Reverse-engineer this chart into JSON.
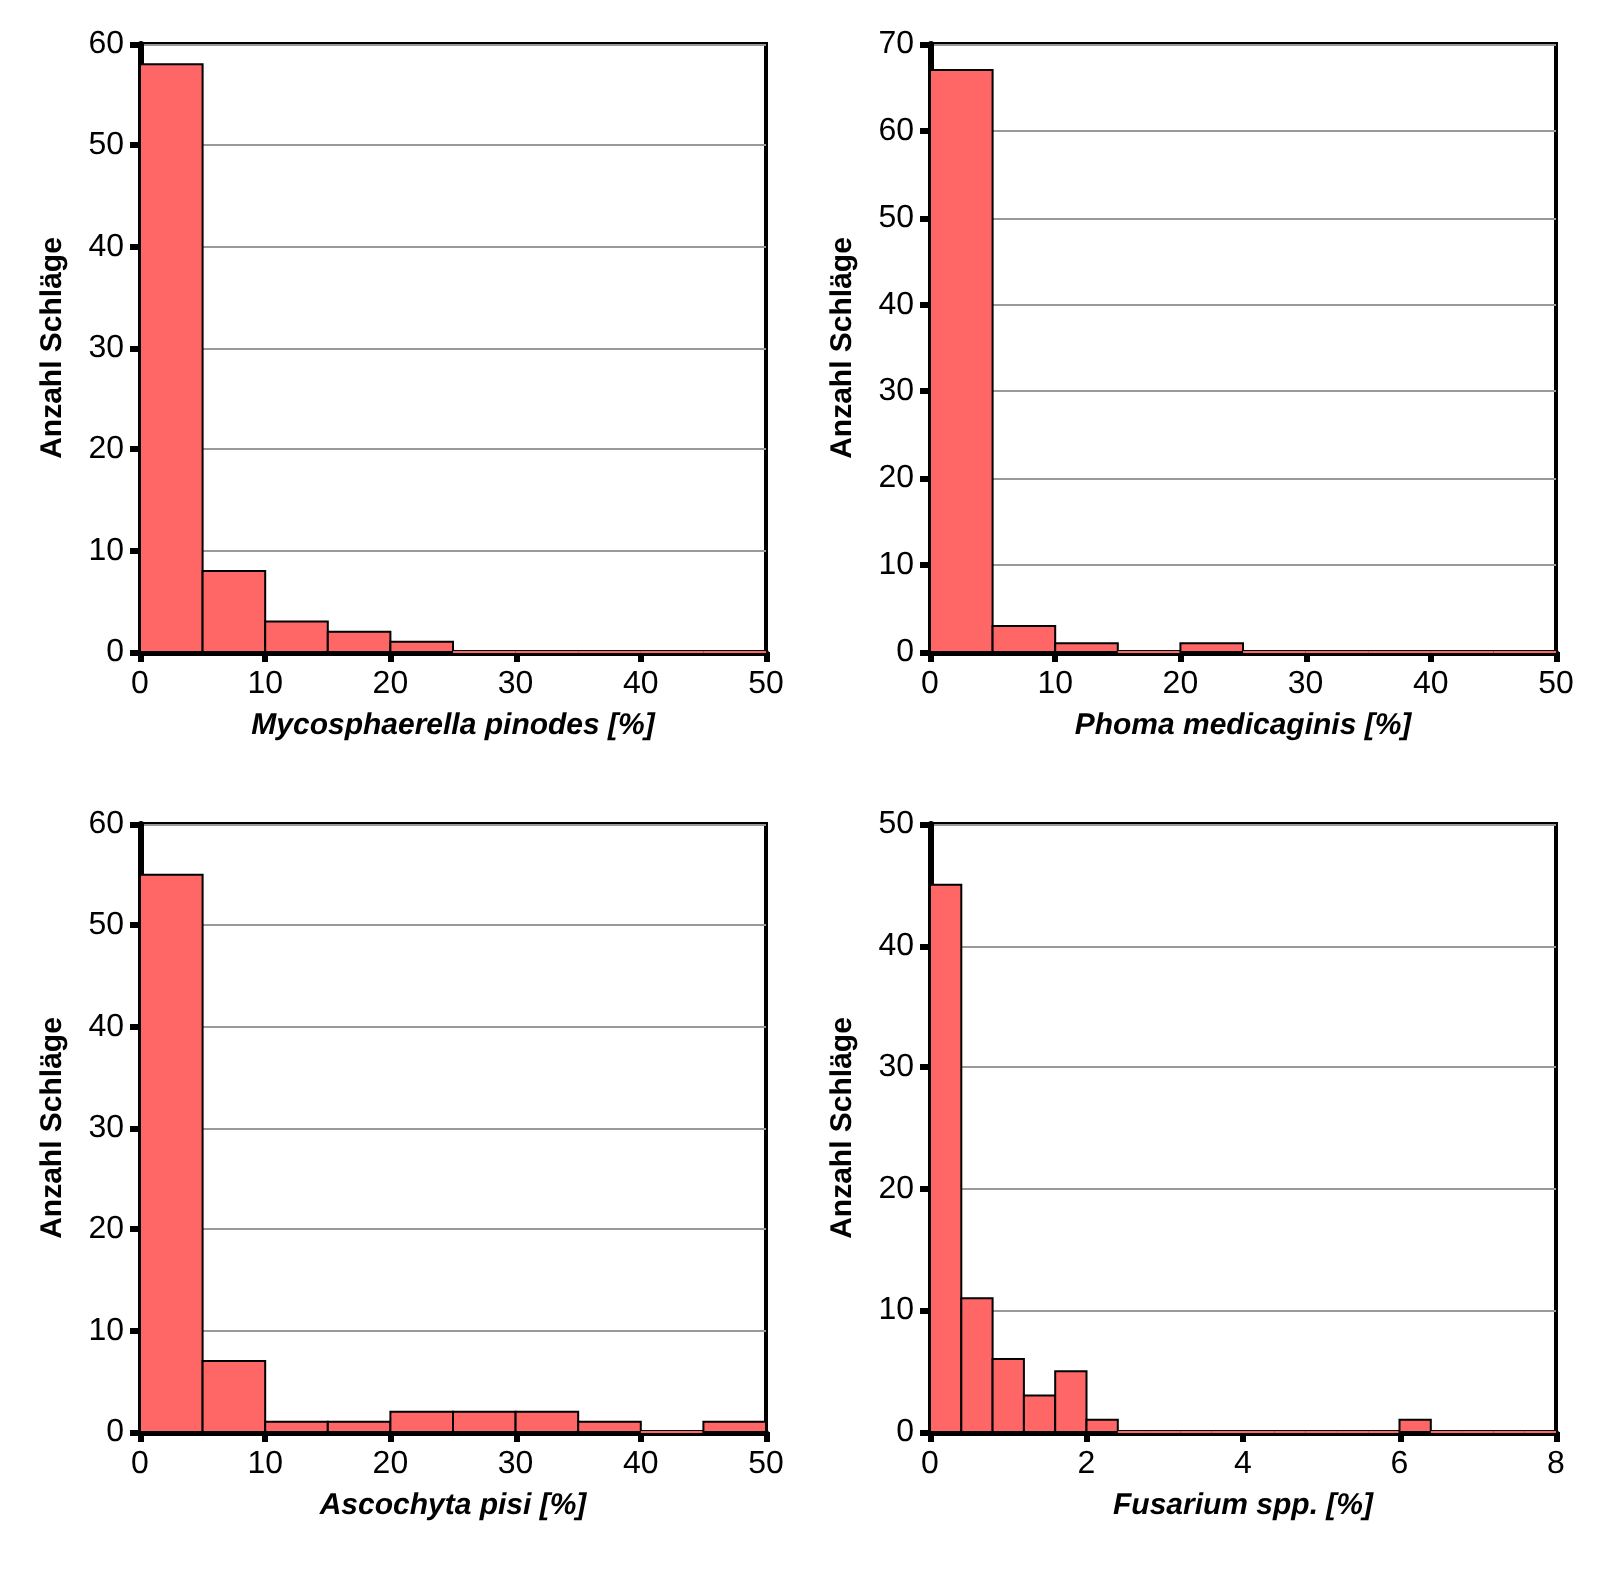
{
  "chart_data": [
    {
      "type": "histogram",
      "xlabel": "Mycosphaerella pinodes [%]",
      "ylabel": "Anzahl Schläge",
      "bins": [
        0,
        5,
        10,
        15,
        20,
        25,
        30,
        35,
        40,
        45,
        50
      ],
      "values": [
        58,
        8,
        3,
        2,
        1,
        0,
        0,
        0,
        0,
        0
      ],
      "color": "#ff6666",
      "xlim": [
        0,
        50
      ],
      "xticks": [
        0,
        10,
        20,
        30,
        40,
        50
      ],
      "ylim": [
        0,
        60
      ],
      "yticks": [
        0,
        10,
        20,
        30,
        40,
        50,
        60
      ],
      "grid": "y"
    },
    {
      "type": "histogram",
      "xlabel": "Phoma medicaginis [%]",
      "ylabel": "Anzahl Schläge",
      "bins": [
        0,
        5,
        10,
        15,
        20,
        25,
        30,
        35,
        40,
        45,
        50
      ],
      "values": [
        67,
        3,
        1,
        0,
        1,
        0,
        0,
        0,
        0,
        0
      ],
      "color": "#ff6666",
      "xlim": [
        0,
        50
      ],
      "xticks": [
        0,
        10,
        20,
        30,
        40,
        50
      ],
      "ylim": [
        0,
        70
      ],
      "yticks": [
        0,
        10,
        20,
        30,
        40,
        50,
        60,
        70
      ],
      "grid": "y"
    },
    {
      "type": "histogram",
      "xlabel": "Ascochyta pisi [%]",
      "ylabel": "Anzahl Schläge",
      "bins": [
        0,
        5,
        10,
        15,
        20,
        25,
        30,
        35,
        40,
        45,
        50
      ],
      "values": [
        55,
        7,
        1,
        1,
        2,
        2,
        2,
        1,
        0,
        1
      ],
      "color": "#ff6666",
      "xlim": [
        0,
        50
      ],
      "xticks": [
        0,
        10,
        20,
        30,
        40,
        50
      ],
      "ylim": [
        0,
        60
      ],
      "yticks": [
        0,
        10,
        20,
        30,
        40,
        50,
        60
      ],
      "grid": "y"
    },
    {
      "type": "histogram",
      "xlabel": "Fusarium spp. [%]",
      "ylabel": "Anzahl Schläge",
      "bins": [
        0,
        0.4,
        0.8,
        1.2,
        1.6,
        2,
        2.4,
        2.8,
        3.2,
        3.6,
        4,
        4.4,
        4.8,
        5.2,
        5.6,
        6,
        6.4,
        6.8,
        7.2,
        7.6,
        8
      ],
      "values": [
        45,
        11,
        6,
        3,
        5,
        1,
        0,
        0,
        0,
        0,
        0,
        0,
        0,
        0,
        0,
        1,
        0,
        0,
        0,
        0
      ],
      "color": "#ff6666",
      "xlim": [
        0,
        8
      ],
      "xticks": [
        0,
        2,
        4,
        6,
        8
      ],
      "ylim": [
        0,
        50
      ],
      "yticks": [
        0,
        10,
        20,
        30,
        40,
        50
      ],
      "grid": "y"
    }
  ]
}
